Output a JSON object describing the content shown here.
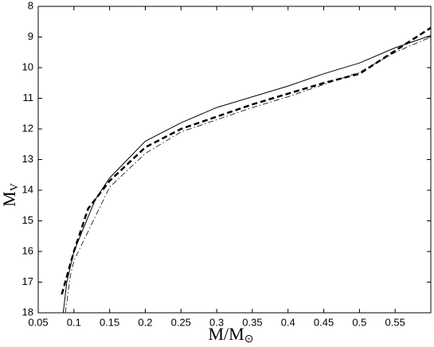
{
  "chart_data": {
    "type": "line",
    "xlabel": {
      "main": "M/M",
      "sub": "⊙"
    },
    "ylabel": {
      "main": "M",
      "sub": "V"
    },
    "xlim": [
      0.05,
      0.6
    ],
    "xticks": [
      0.05,
      0.1,
      0.15,
      0.2,
      0.25,
      0.3,
      0.35,
      0.4,
      0.45,
      0.5,
      0.55
    ],
    "ylim": [
      18,
      8
    ],
    "yticks": [
      8,
      9,
      10,
      11,
      12,
      13,
      14,
      15,
      16,
      17,
      18
    ],
    "series": [
      {
        "color": "#000000",
        "style": "solid",
        "width": 1,
        "x": [
          0.085,
          0.09,
          0.1,
          0.13,
          0.15,
          0.2,
          0.25,
          0.3,
          0.35,
          0.4,
          0.45,
          0.5,
          0.55,
          0.6
        ],
        "values": [
          18,
          17,
          16,
          14.3,
          13.6,
          12.4,
          11.8,
          11.3,
          10.95,
          10.6,
          10.2,
          9.85,
          9.35,
          8.95
        ]
      },
      {
        "color": "#000000",
        "style": "dashed",
        "width": 2.5,
        "x": [
          0.083,
          0.1,
          0.12,
          0.15,
          0.2,
          0.25,
          0.3,
          0.35,
          0.4,
          0.45,
          0.5,
          0.55,
          0.6
        ],
        "values": [
          17.4,
          16,
          14.6,
          13.7,
          12.6,
          12,
          11.6,
          11.2,
          10.85,
          10.5,
          10.2,
          9.45,
          8.7
        ]
      },
      {
        "color": "#000000",
        "style": "dashdot",
        "width": 0.8,
        "x": [
          0.088,
          0.095,
          0.1,
          0.15,
          0.2,
          0.25,
          0.3,
          0.35,
          0.4,
          0.45,
          0.5,
          0.55,
          0.6
        ],
        "values": [
          18,
          16.8,
          16.3,
          13.9,
          12.8,
          12.1,
          11.7,
          11.3,
          10.95,
          10.55,
          10.15,
          9.5,
          9
        ]
      }
    ]
  }
}
